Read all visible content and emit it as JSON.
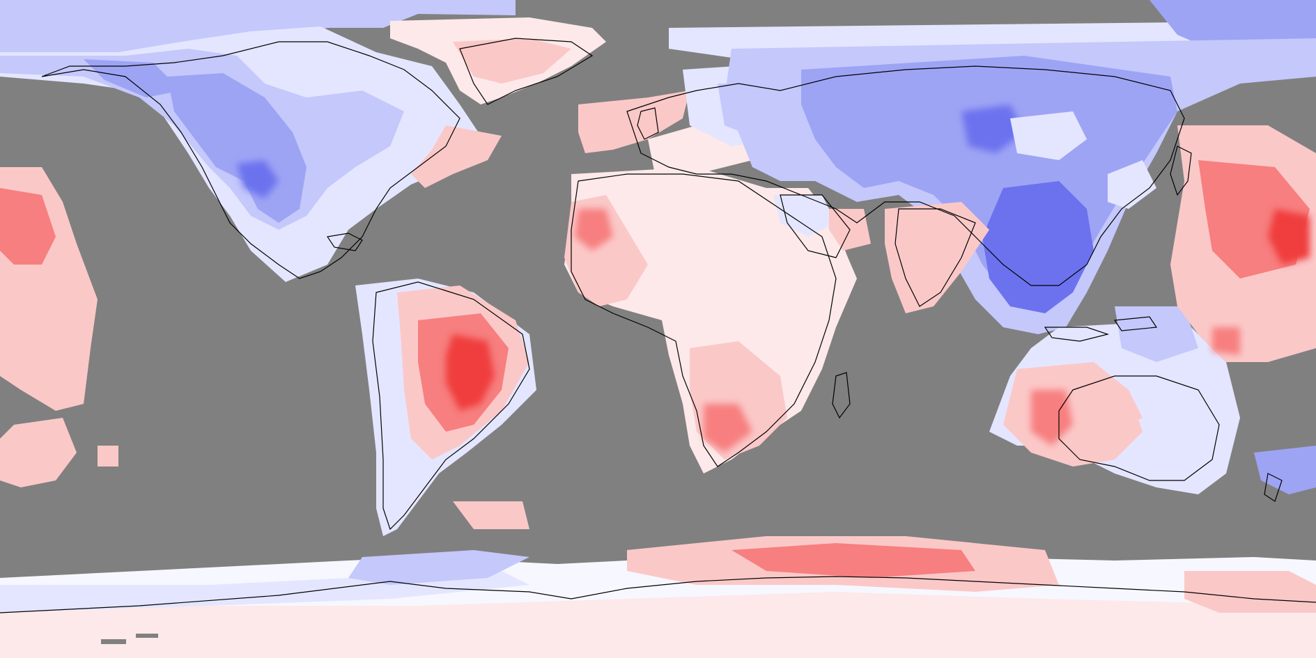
{
  "map": {
    "projection": "equirectangular",
    "colors": {
      "ocean_mask": "#808080",
      "warm_strong": "#f03c3c",
      "warm_mid": "#f77f7f",
      "warm_light": "#fbc8c8",
      "warm_faint": "#fde9e9",
      "neutral": "#f7f7ff",
      "cool_faint": "#e4e6ff",
      "cool_light": "#c4c8fb",
      "cool_mid": "#9ea4f4",
      "cool_strong": "#6c72ee",
      "coastline": "#000000"
    },
    "legend": null
  }
}
